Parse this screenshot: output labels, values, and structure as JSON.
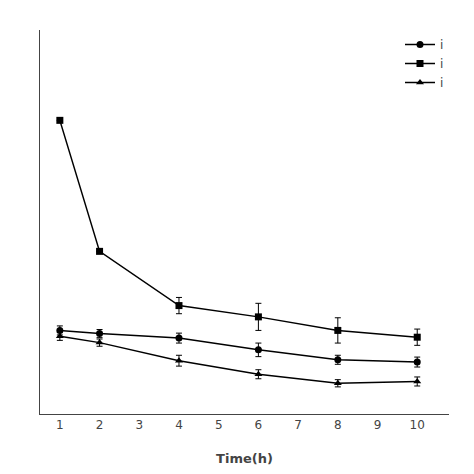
{
  "chart_data": {
    "type": "line",
    "xlabel": "Time(h)",
    "x": [
      1,
      2,
      4,
      6,
      8,
      10
    ],
    "series": [
      {
        "name": "i",
        "color": "#000000",
        "marker": "circle",
        "values": [
          1.85,
          1.78,
          1.68,
          1.42,
          1.2,
          1.15
        ],
        "yerr": [
          0.1,
          0.09,
          0.11,
          0.15,
          0.1,
          0.11
        ]
      },
      {
        "name": "i",
        "color": "#000000",
        "marker": "square",
        "values": [
          6.5,
          3.6,
          2.4,
          2.15,
          1.85,
          1.7
        ],
        "yerr": [
          0.0,
          0.0,
          0.18,
          0.3,
          0.28,
          0.18
        ]
      },
      {
        "name": "i",
        "color": "#000000",
        "marker": "triangle-up",
        "values": [
          1.72,
          1.58,
          1.18,
          0.88,
          0.68,
          0.72
        ],
        "yerr": [
          0.09,
          0.08,
          0.12,
          0.1,
          0.08,
          0.1
        ]
      }
    ],
    "xlim": [
      0.5,
      10.8
    ],
    "xticks": [
      1,
      2,
      3,
      4,
      5,
      6,
      7,
      8,
      9,
      10
    ],
    "ylim": [
      0,
      8.5
    ],
    "tick_labels": "x",
    "grid": false,
    "legend": "upper right"
  }
}
